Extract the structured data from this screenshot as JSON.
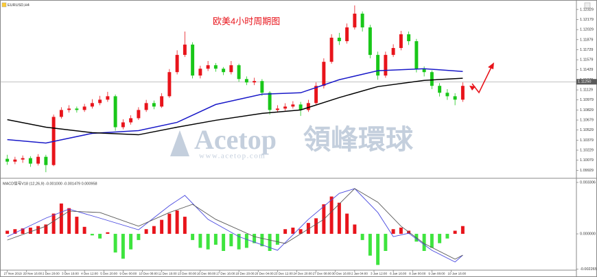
{
  "chart_data": [
    {
      "type": "candlestick",
      "symbol": "EURUSD,H4",
      "title": "欧美4小时周期图",
      "watermark_brand": "Acetop",
      "watermark_cn": "領峰環球",
      "watermark_url": "www.acetop.com",
      "xlim": [
        -0.5,
        59.5
      ],
      "ylim": [
        1.0983,
        1.1244
      ],
      "yticks": [
        1.12329,
        1.12179,
        1.12029,
        1.11879,
        1.11729,
        1.11579,
        1.11429,
        1.11279,
        1.11129,
        1.10979,
        1.10829,
        1.10679,
        1.10529,
        1.10379,
        1.10229,
        1.10079,
        1.09929
      ],
      "up_color": "#e8141b",
      "down_color": "#19c719",
      "open": [
        1.101,
        1.10058,
        1.10089,
        1.1011,
        1.10028,
        1.1013,
        1.10007,
        1.10726,
        1.10829,
        1.1085,
        1.10829,
        1.1088,
        1.10932,
        1.10983,
        1.11034,
        1.10572,
        1.10644,
        1.10706,
        1.10829,
        1.10932,
        1.1088,
        1.11034,
        1.11394,
        1.11651,
        1.11805,
        1.11343,
        1.11445,
        1.11497,
        1.11445,
        1.11394,
        1.11497,
        1.11291,
        1.1124,
        1.11261,
        1.11086,
        1.10829,
        1.1085,
        1.1088,
        1.10911,
        1.10829,
        1.10932,
        1.11189,
        1.11548,
        1.11908,
        1.11856,
        1.12062,
        1.12267,
        1.12062,
        1.11651,
        1.11343,
        1.11651,
        1.11754,
        1.11959,
        1.11856,
        1.11445,
        1.11394,
        1.11189,
        1.11086,
        1.11034,
        1.10983
      ],
      "high": [
        1.1016,
        1.1013,
        1.1015,
        1.1014,
        1.1017,
        1.1016,
        1.1076,
        1.1087,
        1.109,
        1.1088,
        1.1092,
        1.1099,
        1.1104,
        1.111,
        1.1106,
        1.1069,
        1.1075,
        1.1087,
        1.1098,
        1.1097,
        1.1108,
        1.1144,
        1.1172,
        1.12,
        1.1184,
        1.1149,
        1.1156,
        1.1153,
        1.1147,
        1.1156,
        1.1152,
        1.1133,
        1.1131,
        1.1129,
        1.1111,
        1.109,
        1.1093,
        1.1096,
        1.1095,
        1.1098,
        1.1124,
        1.116,
        1.1196,
        1.1198,
        1.1212,
        1.1239,
        1.123,
        1.121,
        1.117,
        1.117,
        1.1181,
        1.1201,
        1.12,
        1.1189,
        1.1148,
        1.1142,
        1.1123,
        1.1114,
        1.1108,
        1.1124
      ],
      "low": [
        1.1001,
        1.1002,
        1.1004,
        1.0998,
        1.1,
        1.099,
        1.0999,
        1.107,
        1.1079,
        1.1079,
        1.108,
        1.1085,
        1.109,
        1.1095,
        1.1052,
        1.1054,
        1.1061,
        1.1068,
        1.108,
        1.1084,
        1.1086,
        1.1101,
        1.1136,
        1.1162,
        1.113,
        1.113,
        1.1141,
        1.114,
        1.1135,
        1.1136,
        1.1125,
        1.112,
        1.112,
        1.1104,
        1.1076,
        1.1079,
        1.1082,
        1.1085,
        1.1074,
        1.108,
        1.109,
        1.1115,
        1.1152,
        1.118,
        1.1182,
        1.1203,
        1.12,
        1.116,
        1.1128,
        1.1131,
        1.1162,
        1.1172,
        1.118,
        1.1139,
        1.1133,
        1.1114,
        1.1103,
        1.1098,
        1.109,
        1.1095
      ],
      "close": [
        1.10058,
        1.10089,
        1.1011,
        1.10028,
        1.1013,
        1.10007,
        1.10726,
        1.10829,
        1.1085,
        1.10829,
        1.1088,
        1.10932,
        1.10983,
        1.11034,
        1.10572,
        1.10644,
        1.10706,
        1.10829,
        1.10932,
        1.1088,
        1.11034,
        1.11394,
        1.11651,
        1.11805,
        1.11343,
        1.11445,
        1.11497,
        1.11445,
        1.11394,
        1.11497,
        1.11291,
        1.1124,
        1.11261,
        1.11086,
        1.10829,
        1.1085,
        1.1088,
        1.10911,
        1.10829,
        1.10932,
        1.11189,
        1.11548,
        1.11908,
        1.11856,
        1.12062,
        1.12267,
        1.12062,
        1.11651,
        1.11343,
        1.11651,
        1.11754,
        1.11959,
        1.11856,
        1.11445,
        1.11394,
        1.11189,
        1.11086,
        1.11034,
        1.10983,
        1.11189
      ],
      "lines": [
        {
          "color": "#1818c8",
          "x": [
            0,
            5,
            11,
            17,
            22,
            27,
            33,
            38,
            43,
            48,
            54,
            59
          ],
          "values": [
            1.10387,
            1.10336,
            1.1048,
            1.10521,
            1.10644,
            1.10911,
            1.11065,
            1.11086,
            1.11281,
            1.11415,
            1.11445,
            1.11404
          ]
        },
        {
          "color": "#000000",
          "x": [
            0,
            5,
            11,
            17,
            22,
            27,
            33,
            38,
            43,
            48,
            54,
            59
          ],
          "values": [
            1.10685,
            1.10572,
            1.1049,
            1.10459,
            1.10572,
            1.10675,
            1.10778,
            1.10829,
            1.11014,
            1.11178,
            1.11271,
            1.11302
          ]
        }
      ],
      "price_line": {
        "value": 1.1125,
        "label": "1.11250"
      }
    },
    {
      "type": "macd",
      "label": "MACD信号V18 (12,26,9) -0.001000 -0.001479 0.000958",
      "xlim": [
        -0.5,
        59.5
      ],
      "ylim": [
        -0.00229,
        0.00344
      ],
      "yticks": [
        0.003306,
        {
          "value": 0,
          "label": "0.000000"
        },
        -0.002265
      ],
      "up_color": "#e8141b",
      "down_color": "#3ee43e",
      "values": [
        0.0002,
        0.0003,
        0.00035,
        0.0004,
        0.0005,
        0.0006,
        0.0013,
        0.00195,
        0.00165,
        0.0011,
        0.00045,
        -0.0001,
        -0.0003,
        0.0001,
        -0.0012,
        -0.0016,
        -0.001,
        -0.0004,
        0.0003,
        0.0005,
        0.0009,
        0.0013,
        0.0015,
        0.0011,
        -0.0004,
        -0.0009,
        -0.001,
        -0.0007,
        -0.0011,
        -0.0008,
        -0.001,
        -0.0009,
        -0.0006,
        -0.0008,
        -0.0011,
        -0.0007,
        0.0003,
        0.0004,
        0.0003,
        0.0007,
        0.001,
        0.0019,
        0.0024,
        0.002,
        0.0013,
        0.0006,
        -0.0004,
        -0.0014,
        -0.002,
        -0.0011,
        0.0003,
        0.0004,
        0.0002,
        -0.0005,
        -0.0011,
        -0.0009,
        -0.0006,
        -0.0003,
        0.0002,
        0.0005
      ],
      "lines": [
        {
          "color": "#4848e0",
          "x": [
            0,
            5,
            8,
            12,
            17,
            21,
            23,
            26,
            30,
            35,
            39,
            43,
            45,
            48,
            50,
            52,
            55,
            58,
            59
          ],
          "values": [
            -0.00018,
            0.00101,
            0.00159,
            0.00101,
            0.00026,
            0.00181,
            0.00247,
            0.00093,
            -0.00018,
            -0.00106,
            0.00093,
            0.0026,
            0.00291,
            0.00137,
            -0.00018,
            4e-05,
            -0.00106,
            -0.00181,
            -0.00137
          ]
        },
        {
          "color": "#555555",
          "x": [
            0,
            5,
            8,
            12,
            17,
            21,
            24,
            27,
            32,
            36,
            41,
            45,
            48,
            51,
            54,
            58,
            59
          ],
          "values": [
            -0.0004,
            0.00049,
            0.00146,
            0.00137,
            0.00049,
            0.00137,
            0.0019,
            0.00093,
            -0.00018,
            -0.00062,
            0.00093,
            0.00291,
            0.00203,
            0.00049,
            -0.00062,
            -0.00163,
            -0.00137
          ]
        }
      ],
      "xticks": [
        {
          "value": 0,
          "label": "27 Nov 2019"
        },
        {
          "value": 2.5,
          "label": "29 Nov 16:00"
        },
        {
          "value": 5,
          "label": "2 Dec 20:00"
        },
        {
          "value": 7.5,
          "label": "3 Dec 16:00"
        },
        {
          "value": 10,
          "label": "4 Dec 12:00"
        },
        {
          "value": 12.5,
          "label": "5 Dec 20:00"
        },
        {
          "value": 15,
          "label": "9 Dec 00:00"
        },
        {
          "value": 17.5,
          "label": "10 Dec 08:00"
        },
        {
          "value": 20,
          "label": "11 Dec 16:00"
        },
        {
          "value": 22.5,
          "label": "13 Dec 00:00"
        },
        {
          "value": 25,
          "label": "16 Dec 08:00"
        },
        {
          "value": 27.5,
          "label": "17 Dec 16:00"
        },
        {
          "value": 30,
          "label": "18 Dec 20:00"
        },
        {
          "value": 32.5,
          "label": "20 Dec 04:00"
        },
        {
          "value": 35,
          "label": "23 Dec 12:00"
        },
        {
          "value": 37.5,
          "label": "24 Dec 20:00"
        },
        {
          "value": 40,
          "label": "27 Dec 08:00"
        },
        {
          "value": 42.5,
          "label": "30 Dec 16:00"
        },
        {
          "value": 45,
          "label": "2 Jan 04:00"
        },
        {
          "value": 47.5,
          "label": "3 Jan 12:00"
        },
        {
          "value": 50,
          "label": "6 Jan 16:00"
        },
        {
          "value": 52.5,
          "label": "8 Jan 00:00"
        },
        {
          "value": 55,
          "label": "9 Jan 08:00"
        },
        {
          "value": 57.5,
          "label": "10 Jan 16:00"
        }
      ]
    }
  ]
}
